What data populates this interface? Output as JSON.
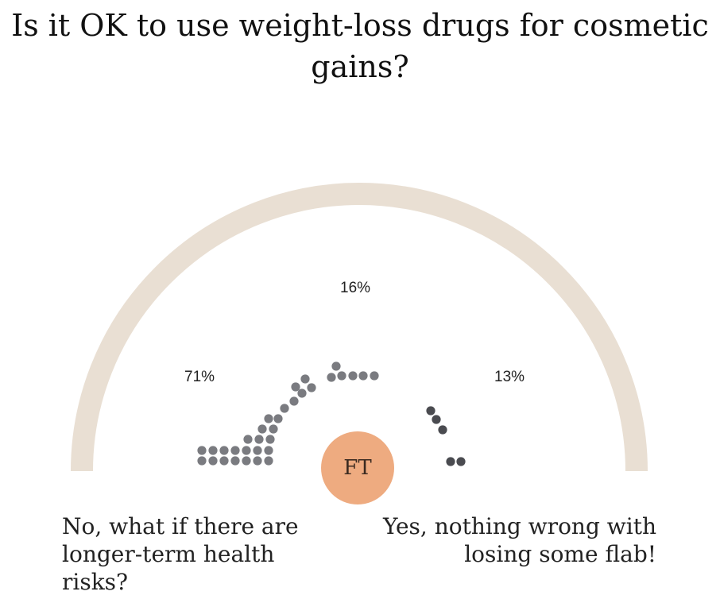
{
  "chart_data": {
    "type": "dot-gauge",
    "title": "Is it OK to use weight-loss drugs for cosmetic gains?",
    "options": [
      {
        "key": "no",
        "label": "No, what if there are longer-term health risks?",
        "percent_label": "71%",
        "value": 71
      },
      {
        "key": "neutral",
        "label": "",
        "percent_label": "16%",
        "value": 16
      },
      {
        "key": "yes",
        "label": "Yes, nothing wrong with losing some flab!",
        "percent_label": "13%",
        "value": 13
      }
    ],
    "colors": {
      "arc": "#e9dfd3",
      "dots_no": "#7a7b80",
      "dots_neutral": "#7a7b80",
      "dots_yes": "#4a4b50",
      "logo": "#eeab80"
    }
  },
  "logo": {
    "text": "FT"
  }
}
